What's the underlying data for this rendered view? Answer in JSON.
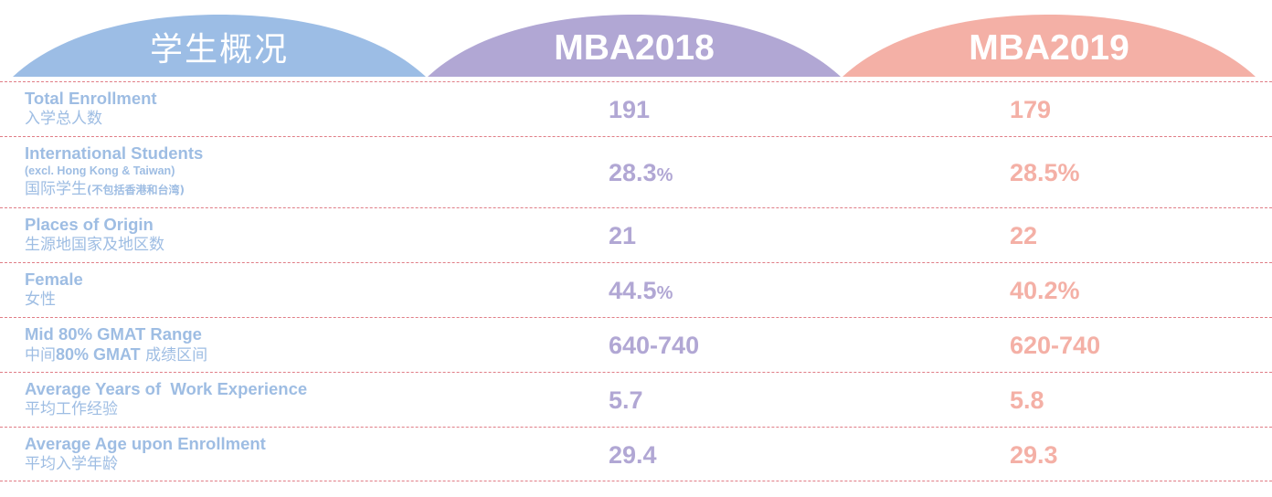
{
  "header": {
    "label_tab": "学生概况",
    "col_2018": "MBA2018",
    "col_2019": "MBA2019"
  },
  "colors": {
    "label_tab": "#9cbde5",
    "tab_2018": "#b1a7d4",
    "tab_2019": "#f4b0a6",
    "label_text": "#9ebde3",
    "divider": "#e07d86"
  },
  "rows": [
    {
      "label_en": "Total Enrollment",
      "label_cn": "入学总人数",
      "v2018": "191",
      "v2019": "179"
    },
    {
      "label_en": "International Students",
      "label_sub": "(excl. Hong Kong & Taiwan)",
      "label_cn": "国际学生",
      "label_cn_small": "(不包括香港和台湾)",
      "v2018": "28.3",
      "v2018_unit": "%",
      "v2019": "28.5%"
    },
    {
      "label_en": "Places of Origin",
      "label_cn": "生源地国家及地区数",
      "v2018": "21",
      "v2019": "22"
    },
    {
      "label_en": "Female",
      "label_cn": "女性",
      "v2018": "44.5",
      "v2018_unit": "%",
      "v2019": "40.2%"
    },
    {
      "label_en": "Mid 80% GMAT Range",
      "label_cn_pre": "中间",
      "label_cn_bold": "80% GMAT",
      "label_cn_post": " 成绩区间",
      "v2018": "640-740",
      "v2019": "620-740"
    },
    {
      "label_en": "Average Years of  Work Experience",
      "label_cn": "平均工作经验",
      "v2018": "5.7",
      "v2019": "5.8"
    },
    {
      "label_en": "Average Age upon Enrollment",
      "label_cn": "平均入学年龄",
      "v2018": "29.4",
      "v2019": "29.3"
    }
  ]
}
